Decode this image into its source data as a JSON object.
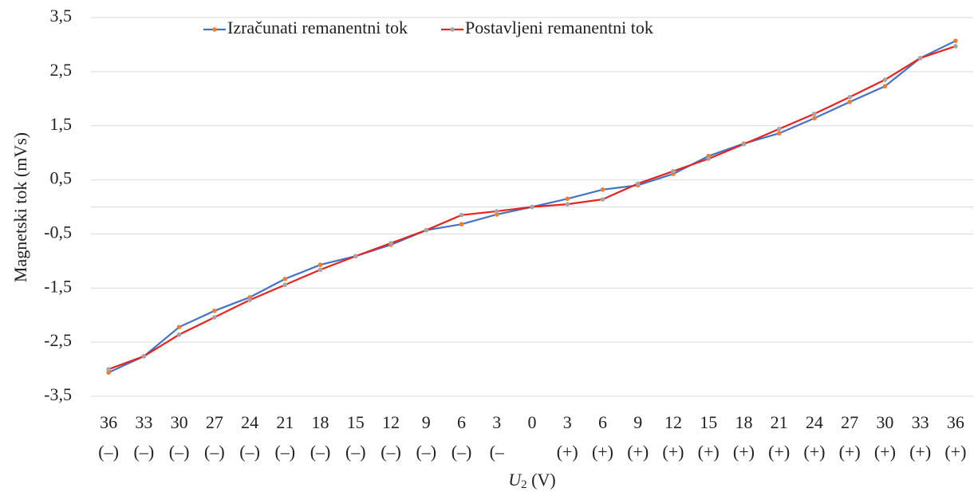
{
  "chart_data": {
    "type": "line",
    "y_label": "Magnetski tok (mVs)",
    "x_label": [
      "U",
      "2",
      " (V)"
    ],
    "categories": [
      [
        "36",
        "(–)"
      ],
      [
        "33",
        "(–)"
      ],
      [
        "30",
        "(–)"
      ],
      [
        "27",
        "(–)"
      ],
      [
        "24",
        "(–)"
      ],
      [
        "21",
        "(–)"
      ],
      [
        "18",
        "(–)"
      ],
      [
        "15",
        "(–)"
      ],
      [
        "12",
        "(–)"
      ],
      [
        "9",
        "(–)"
      ],
      [
        "6",
        "(–)"
      ],
      [
        "3",
        "(–"
      ],
      [
        "0"
      ],
      [
        "3",
        "(+)"
      ],
      [
        "6",
        "(+)"
      ],
      [
        "9",
        "(+)"
      ],
      [
        "12",
        "(+)"
      ],
      [
        "15",
        "(+)"
      ],
      [
        "18",
        "(+)"
      ],
      [
        "21",
        "(+)"
      ],
      [
        "24",
        "(+)"
      ],
      [
        "27",
        "(+)"
      ],
      [
        "30",
        "(+)"
      ],
      [
        "33",
        "(+)"
      ],
      [
        "36",
        "(+)"
      ]
    ],
    "series": [
      {
        "name": "Izračunati remanentni tok",
        "color": "#4472c4",
        "marker_color": "#ed7d31",
        "values": [
          -3.06,
          -2.76,
          -2.22,
          -1.92,
          -1.67,
          -1.33,
          -1.07,
          -0.91,
          -0.7,
          -0.43,
          -0.32,
          -0.14,
          0,
          0.15,
          0.32,
          0.4,
          0.61,
          0.94,
          1.17,
          1.36,
          1.64,
          1.94,
          2.23,
          2.75,
          3.07
        ]
      },
      {
        "name": "Postavljeni remanentni tok",
        "color": "#e8221e",
        "marker_color": "#a5a5a5",
        "values": [
          -3.0,
          -2.76,
          -2.36,
          -2.04,
          -1.72,
          -1.44,
          -1.16,
          -0.91,
          -0.67,
          -0.43,
          -0.15,
          -0.08,
          0,
          0.05,
          0.14,
          0.43,
          0.66,
          0.89,
          1.16,
          1.44,
          1.72,
          2.03,
          2.35,
          2.75,
          2.97
        ]
      }
    ],
    "ylim": [
      -3.5,
      3.5
    ],
    "yticks": [
      {
        "value": -3.5,
        "label": "-3,5"
      },
      {
        "value": -2.5,
        "label": "-2,5"
      },
      {
        "value": -1.5,
        "label": "-1,5"
      },
      {
        "value": -0.5,
        "label": "-0,5"
      },
      {
        "value": 0.5,
        "label": "0,5"
      },
      {
        "value": 1.5,
        "label": "1,5"
      },
      {
        "value": 2.5,
        "label": "2,5"
      },
      {
        "value": 3.5,
        "label": "3,5"
      }
    ],
    "grid": true,
    "legend": "top"
  }
}
